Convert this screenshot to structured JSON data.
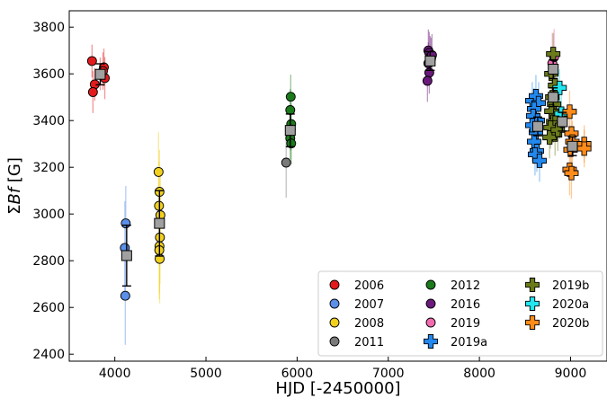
{
  "chart_data": {
    "type": "scatter",
    "xlabel": "HJD  [-2450000]",
    "ylabel_prefix": "Σ",
    "ylabel_italic": "Bf",
    "ylabel_suffix": "  [G]",
    "xlim": [
      3500,
      9400
    ],
    "ylim": [
      2370,
      3870
    ],
    "xticks": [
      4000,
      5000,
      6000,
      7000,
      8000,
      9000
    ],
    "yticks": [
      2400,
      2600,
      2800,
      3000,
      3200,
      3400,
      3600,
      3800
    ],
    "legend_position": "lower-right",
    "series": [
      {
        "name": "2006",
        "color": "#e31a1c",
        "marker": "circle",
        "points": [
          [
            3750,
            3655,
            70
          ],
          [
            3780,
            3555,
            70
          ],
          [
            3760,
            3522,
            90
          ],
          [
            3880,
            3628,
            80
          ],
          [
            3890,
            3582,
            90
          ],
          [
            3870,
            3612,
            80
          ],
          [
            3840,
            3600,
            70
          ]
        ]
      },
      {
        "name": "2007",
        "color": "#5b8fe8",
        "marker": "circle",
        "points": [
          [
            4120,
            2960,
            160
          ],
          [
            4110,
            2855,
            200
          ],
          [
            4115,
            2650,
            210
          ]
        ]
      },
      {
        "name": "2008",
        "color": "#f2d01e",
        "marker": "circle",
        "points": [
          [
            4480,
            3180,
            170
          ],
          [
            4490,
            3095,
            180
          ],
          [
            4485,
            3035,
            190
          ],
          [
            4500,
            2995,
            200
          ],
          [
            4495,
            2900,
            200
          ],
          [
            4490,
            2862,
            200
          ],
          [
            4488,
            2845,
            210
          ],
          [
            4492,
            2808,
            190
          ]
        ]
      },
      {
        "name": "2011",
        "color": "#7a7a7a",
        "marker": "circle",
        "points": [
          [
            5880,
            3220,
            150
          ]
        ]
      },
      {
        "name": "2012",
        "color": "#1b7a1b",
        "marker": "circle",
        "points": [
          [
            5930,
            3502,
            95
          ],
          [
            5925,
            3445,
            90
          ],
          [
            5935,
            3385,
            90
          ],
          [
            5930,
            3362,
            90
          ],
          [
            5925,
            3325,
            90
          ],
          [
            5935,
            3302,
            90
          ]
        ]
      },
      {
        "name": "2016",
        "color": "#6a1a7a",
        "marker": "circle",
        "points": [
          [
            7440,
            3700,
            90
          ],
          [
            7450,
            3690,
            90
          ],
          [
            7460,
            3672,
            90
          ],
          [
            7470,
            3665,
            90
          ],
          [
            7440,
            3645,
            90
          ],
          [
            7450,
            3605,
            90
          ],
          [
            7430,
            3570,
            90
          ],
          [
            7480,
            3680,
            90
          ]
        ]
      },
      {
        "name": "2019",
        "color": "#f06bb0",
        "marker": "circle",
        "points": [
          [
            8800,
            3645,
            130
          ],
          [
            8820,
            3672,
            120
          ]
        ]
      },
      {
        "name": "2019a",
        "color": "#2288ee",
        "marker": "plus",
        "points": [
          [
            8580,
            3485,
            80
          ],
          [
            8620,
            3505,
            90
          ],
          [
            8650,
            3475,
            90
          ],
          [
            8600,
            3450,
            90
          ],
          [
            8590,
            3420,
            90
          ],
          [
            8640,
            3400,
            90
          ],
          [
            8620,
            3350,
            90
          ],
          [
            8600,
            3310,
            90
          ],
          [
            8630,
            3270,
            90
          ],
          [
            8610,
            3255,
            90
          ],
          [
            8660,
            3228,
            90
          ],
          [
            8580,
            3380,
            90
          ]
        ]
      },
      {
        "name": "2019b",
        "color": "#6b7a1a",
        "marker": "plus",
        "points": [
          [
            8810,
            3685,
            90
          ],
          [
            8790,
            3600,
            90
          ],
          [
            8830,
            3550,
            90
          ],
          [
            8800,
            3500,
            90
          ],
          [
            8820,
            3470,
            90
          ],
          [
            8790,
            3440,
            90
          ],
          [
            8840,
            3420,
            90
          ],
          [
            8810,
            3395,
            90
          ],
          [
            8780,
            3370,
            90
          ],
          [
            8830,
            3340,
            90
          ],
          [
            8770,
            3328,
            90
          ],
          [
            8860,
            3360,
            90
          ],
          [
            8880,
            3410,
            90
          ]
        ]
      },
      {
        "name": "2020a",
        "color": "#22e6f0",
        "marker": "plus",
        "points": [
          [
            8880,
            3540,
            80
          ],
          [
            8900,
            3430,
            80
          ]
        ]
      },
      {
        "name": "2020b",
        "color": "#ff8c1a",
        "marker": "plus",
        "points": [
          [
            8990,
            3438,
            90
          ],
          [
            9010,
            3345,
            90
          ],
          [
            9020,
            3310,
            90
          ],
          [
            9000,
            3275,
            90
          ],
          [
            8990,
            3190,
            110
          ],
          [
            9010,
            3175,
            110
          ],
          [
            9150,
            3300,
            80
          ],
          [
            9150,
            3280,
            80
          ]
        ]
      }
    ],
    "means": {
      "name": "mean",
      "color": "#a0a0a0",
      "marker": "square",
      "points": [
        [
          3840,
          3598,
          45
        ],
        [
          4130,
          2822,
          130
        ],
        [
          4490,
          2960,
          140
        ],
        [
          5925,
          3358,
          70
        ],
        [
          7460,
          3655,
          40
        ],
        [
          8640,
          3375,
          40
        ],
        [
          8810,
          3620,
          40
        ],
        [
          8810,
          3500,
          40
        ],
        [
          8910,
          3395,
          40
        ],
        [
          9020,
          3290,
          40
        ]
      ]
    },
    "legend": {
      "columns": [
        [
          "2006",
          "2007",
          "2008",
          "2011"
        ],
        [
          "2012",
          "2016",
          "2019",
          "2019a"
        ],
        [
          "2019b",
          "2020a",
          "2020b"
        ]
      ]
    }
  }
}
